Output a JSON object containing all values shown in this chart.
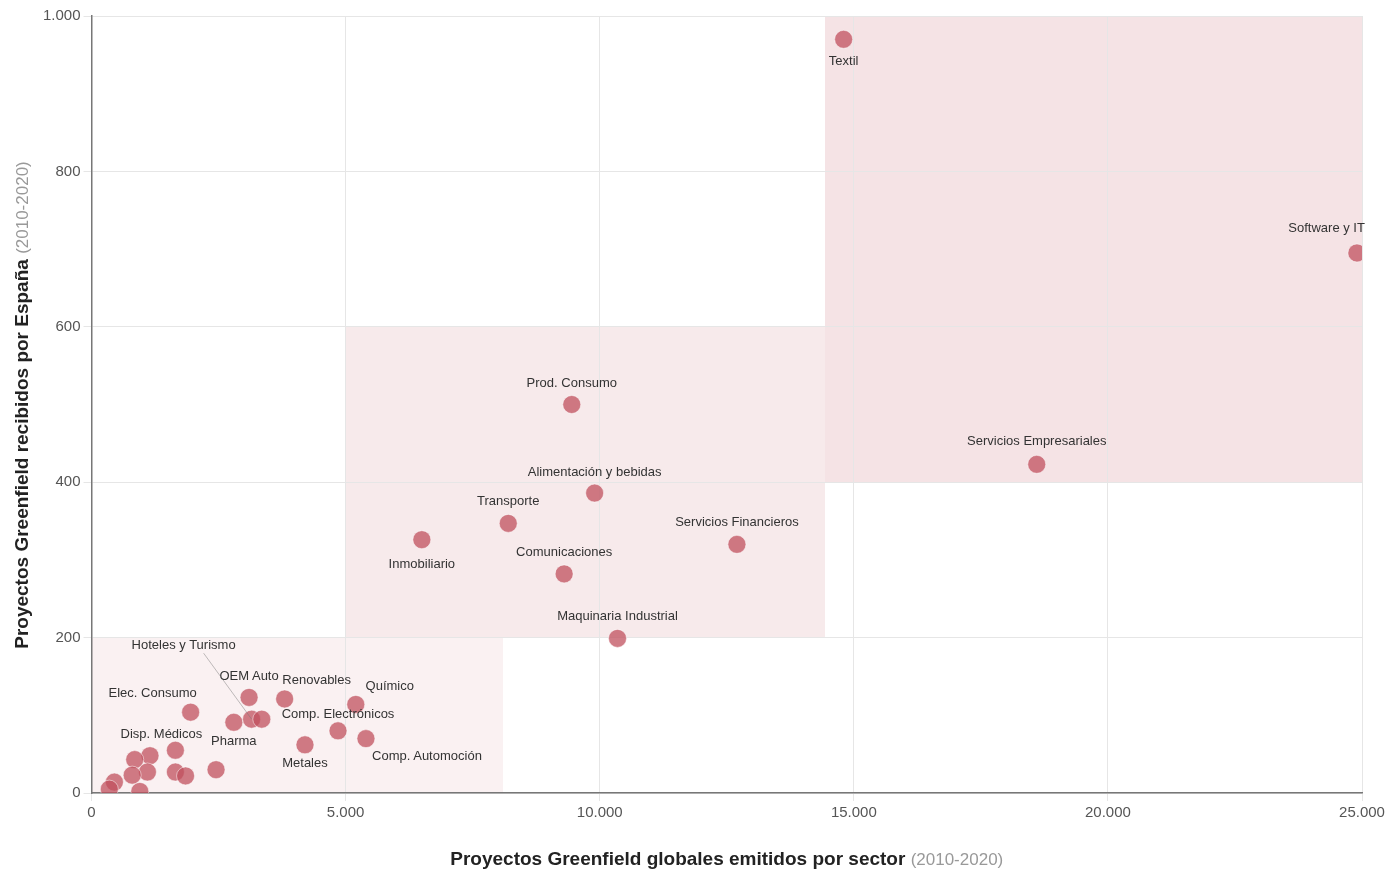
{
  "chart_data": {
    "type": "scatter",
    "xlabel": "Proyectos Greenfield globales emitidos por sector (2010-2020)",
    "ylabel": "Proyectos Greenfield recibidos por España (2010-2020)",
    "series": [
      {
        "color": "#c0505e",
        "x": [
          14800,
          24900,
          18600,
          9450,
          9900,
          8200,
          12700,
          6500,
          9300,
          10350,
          1950,
          3100,
          3800,
          5200,
          2800,
          3150,
          3350,
          4850,
          5400,
          4200,
          1650,
          2450,
          1650,
          1850,
          1150,
          850,
          1100,
          650,
          450,
          350,
          950,
          800
        ],
        "values": [
          970,
          695,
          423,
          500,
          386,
          347,
          320,
          326,
          282,
          199,
          104,
          123,
          121,
          114,
          91,
          95,
          95,
          80,
          70,
          62,
          55,
          30,
          27,
          22,
          48,
          43,
          27,
          null,
          14,
          5,
          2,
          23
        ]
      }
    ],
    "annotations": [
      {
        "text": "Textil",
        "x": 14800,
        "y": 970
      },
      {
        "text": "Software y IT",
        "x": 24900,
        "y": 695
      },
      {
        "text": "Servicios Empresariales",
        "x": 18600,
        "y": 423
      },
      {
        "text": "Prod. Consumo",
        "x": 9450,
        "y": 500
      },
      {
        "text": "Alimentación y bebidas",
        "x": 9900,
        "y": 386
      },
      {
        "text": "Transporte",
        "x": 8200,
        "y": 347
      },
      {
        "text": "Servicios Financieros",
        "x": 12700,
        "y": 320
      },
      {
        "text": "Inmobiliario",
        "x": 6500,
        "y": 326
      },
      {
        "text": "Comunicaciones",
        "x": 9300,
        "y": 282
      },
      {
        "text": "Maquinaria Industrial",
        "x": 10350,
        "y": 199
      },
      {
        "text": "Elec. Consumo",
        "x": 1950,
        "y": 104
      },
      {
        "text": "OEM Auto",
        "x": 3100,
        "y": 123
      },
      {
        "text": "Renovables",
        "x": 3800,
        "y": 121
      },
      {
        "text": "Químico",
        "x": 5200,
        "y": 114
      },
      {
        "text": "Pharma",
        "x": 2800,
        "y": 91
      },
      {
        "text": "Hoteles y Turismo",
        "x": 3150,
        "y": 95
      },
      {
        "text": "Comp. Electrónicos",
        "x": 4850,
        "y": 80
      },
      {
        "text": "Comp. Automoción",
        "x": 5400,
        "y": 70
      },
      {
        "text": "Metales",
        "x": 4200,
        "y": 62
      },
      {
        "text": "Disp. Médicos",
        "x": 1650,
        "y": 55
      }
    ],
    "xlim": [
      0,
      25000
    ],
    "xticks": [
      0,
      {
        "value": 5000,
        "label": "5.000"
      },
      {
        "value": 10000,
        "label": "10.000"
      },
      {
        "value": 15000,
        "label": "15.000"
      },
      {
        "value": 20000,
        "label": "20.000"
      },
      {
        "value": 25000,
        "label": "25.000"
      }
    ],
    "ylim": [
      0,
      1000
    ],
    "yticks": [
      0,
      200,
      400,
      600,
      800,
      {
        "value": 1000,
        "label": "1.000"
      }
    ],
    "grid": true,
    "legend": false,
    "marker": "circle"
  }
}
